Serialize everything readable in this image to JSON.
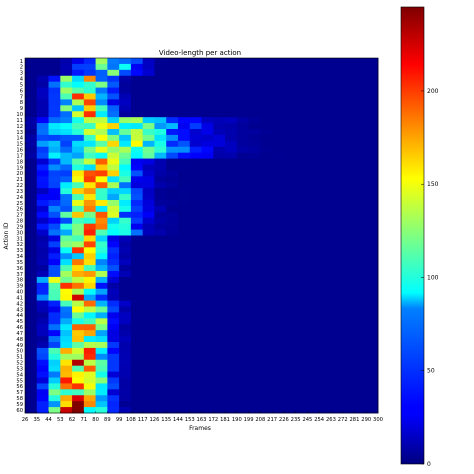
{
  "chart_data": {
    "type": "heatmap",
    "title": "Video-length per action",
    "xlabel": "Frames",
    "ylabel": "Action ID",
    "x_ticks": [
      "26",
      "35",
      "44",
      "53",
      "62",
      "71",
      "80",
      "89",
      "99",
      "108",
      "117",
      "126",
      "135",
      "144",
      "153",
      "163",
      "172",
      "181",
      "190",
      "199",
      "208",
      "217",
      "226",
      "235",
      "245",
      "254",
      "263",
      "272",
      "281",
      "290",
      "300"
    ],
    "y_ticks": [
      "1",
      "2",
      "3",
      "4",
      "5",
      "6",
      "7",
      "8",
      "9",
      "10",
      "11",
      "12",
      "13",
      "14",
      "15",
      "16",
      "17",
      "18",
      "19",
      "20",
      "21",
      "22",
      "23",
      "24",
      "25",
      "26",
      "27",
      "28",
      "29",
      "30",
      "31",
      "32",
      "33",
      "34",
      "35",
      "36",
      "37",
      "38",
      "39",
      "40",
      "41",
      "42",
      "43",
      "44",
      "45",
      "46",
      "47",
      "48",
      "49",
      "50",
      "51",
      "52",
      "53",
      "54",
      "55",
      "56",
      "57",
      "58",
      "59",
      "60"
    ],
    "colorbar": {
      "colormap": "jet",
      "range": [
        0,
        245
      ],
      "ticks": [
        "0",
        "50",
        "100",
        "150",
        "200"
      ],
      "tick_values": [
        0,
        50,
        100,
        150,
        200
      ]
    },
    "description": "Counts of video lengths (in frames) per action class; most actions concentrate between 35 and 100 frames, actions 11-17 extend further to ~200 frames."
  }
}
